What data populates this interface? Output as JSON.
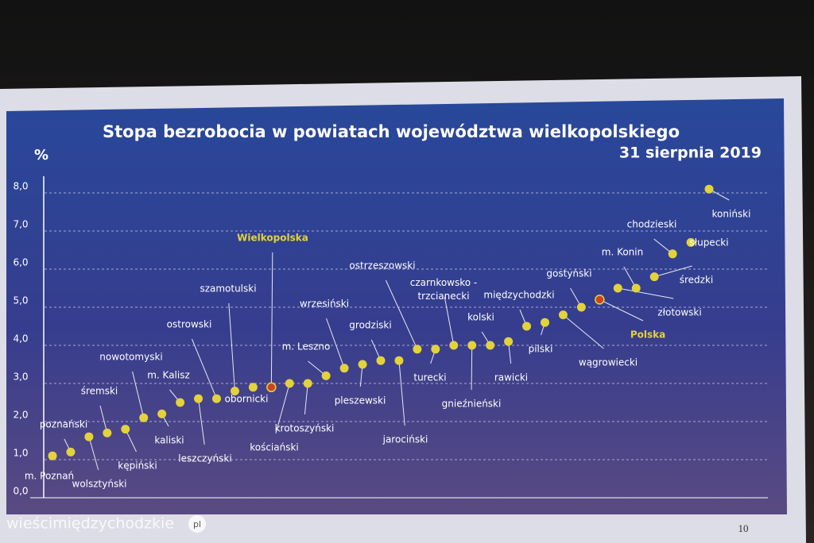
{
  "chart_data": {
    "type": "scatter",
    "title": "Stopa bezrobocia w powiatach województwa wielkopolskiego",
    "subtitle": "31 sierpnia 2019",
    "y_label": "%",
    "categories": [
      "m. Poznań",
      "poznański",
      "wolsztyński",
      "śremski",
      "kępiński",
      "nowotomyski",
      "kaliski",
      "m. Kalisz",
      "leszczyński",
      "ostrowski",
      "szamotulski",
      "obornicki",
      "Wielkopolska",
      "kościański",
      "krotoszyński",
      "m. Leszno",
      "wrzesiński",
      "pleszewski",
      "grodziski",
      "jarociński",
      "ostrzeszowski",
      "turecki",
      "czarnkowsko - trzcianecki",
      "gnieźnieński",
      "kolski",
      "rawicki",
      "międzychodzki",
      "pilski",
      "wągrowiecki",
      "gostyński",
      "Polska",
      "złotowski",
      "m. Konin",
      "średzki",
      "chodzieski",
      "słupecki",
      "koniński"
    ],
    "values": [
      1.1,
      1.2,
      1.6,
      1.7,
      1.8,
      2.1,
      2.2,
      2.5,
      2.6,
      2.6,
      2.8,
      2.9,
      2.9,
      3.0,
      3.0,
      3.2,
      3.4,
      3.5,
      3.6,
      3.6,
      3.9,
      3.9,
      4.0,
      4.0,
      4.0,
      4.1,
      4.5,
      4.6,
      4.8,
      5.0,
      5.2,
      5.5,
      5.5,
      5.8,
      6.4,
      6.7,
      8.1
    ],
    "color": "#e3d23c",
    "point_colors": [
      "#e3d23c",
      "#e3d23c",
      "#e3d23c",
      "#e3d23c",
      "#e3d23c",
      "#e3d23c",
      "#e3d23c",
      "#e3d23c",
      "#e3d23c",
      "#e3d23c",
      "#e3d23c",
      "#e3d23c",
      "#c8452a",
      "#e3d23c",
      "#e3d23c",
      "#e3d23c",
      "#e3d23c",
      "#e3d23c",
      "#e3d23c",
      "#e3d23c",
      "#e3d23c",
      "#e3d23c",
      "#e3d23c",
      "#e3d23c",
      "#e3d23c",
      "#e3d23c",
      "#e3d23c",
      "#e3d23c",
      "#e3d23c",
      "#e3d23c",
      "#c8452a",
      "#e3d23c",
      "#e3d23c",
      "#e3d23c",
      "#e3d23c",
      "#e3d23c",
      "#e3d23c"
    ],
    "ylim": [
      0,
      8.5
    ],
    "yticks": [
      {
        "value": 0,
        "label": "0,0"
      },
      {
        "value": 1,
        "label": "1,0"
      },
      {
        "value": 2,
        "label": "2,0"
      },
      {
        "value": 3,
        "label": "3,0"
      },
      {
        "value": 4,
        "label": "4,0"
      },
      {
        "value": 5,
        "label": "5,0"
      },
      {
        "value": 6,
        "label": "6,0"
      },
      {
        "value": 7,
        "label": "7,0"
      },
      {
        "value": 8,
        "label": "8,0"
      }
    ],
    "grid": true
  },
  "page_number": "10",
  "watermark": {
    "name": "wieścimiędzychodzkie",
    "domain": "pl"
  }
}
